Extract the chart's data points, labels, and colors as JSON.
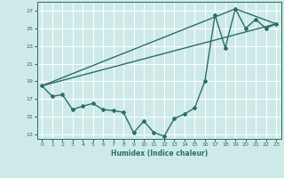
{
  "title": "",
  "xlabel": "Humidex (Indice chaleur)",
  "ylabel": "",
  "background_color": "#ceeae8",
  "grid_color": "#ffffff",
  "line_color": "#2a6e65",
  "ylim": [
    12.5,
    28.0
  ],
  "xlim": [
    -0.5,
    23.5
  ],
  "yticks": [
    13,
    15,
    17,
    19,
    21,
    23,
    25,
    27
  ],
  "xticks": [
    0,
    1,
    2,
    3,
    4,
    5,
    6,
    7,
    8,
    9,
    10,
    11,
    12,
    13,
    14,
    15,
    16,
    17,
    18,
    19,
    20,
    21,
    22,
    23
  ],
  "series1_x": [
    0,
    1,
    2,
    3,
    4,
    5,
    6,
    7,
    8,
    9,
    10,
    11,
    12,
    13,
    14,
    15,
    16,
    17,
    18,
    19,
    20,
    21,
    22,
    23
  ],
  "series1_y": [
    18.5,
    17.3,
    17.5,
    15.8,
    16.2,
    16.5,
    15.8,
    15.7,
    15.5,
    13.2,
    14.5,
    13.2,
    12.8,
    14.8,
    15.3,
    16.0,
    19.0,
    26.5,
    22.8,
    27.2,
    25.0,
    26.0,
    25.0,
    25.5
  ],
  "series2_x": [
    0,
    19,
    23
  ],
  "series2_y": [
    18.5,
    27.2,
    25.5
  ],
  "series3_x": [
    0,
    23
  ],
  "series3_y": [
    18.5,
    25.5
  ]
}
